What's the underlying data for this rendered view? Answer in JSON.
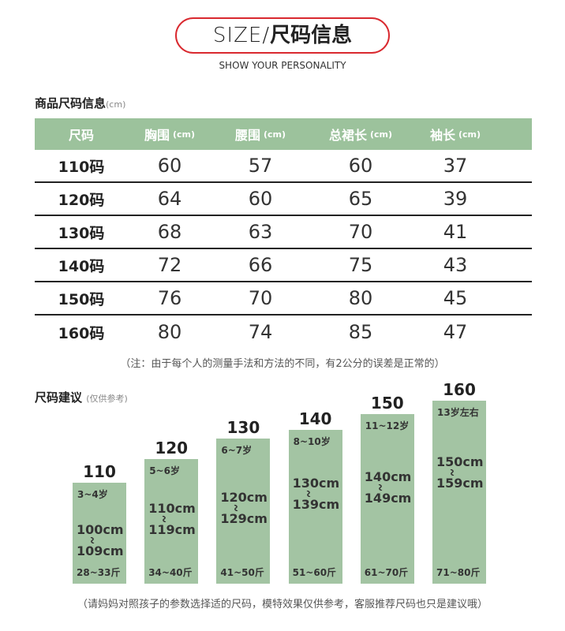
{
  "header": {
    "title_en": "SIZE/",
    "title_cn": "尺码信息",
    "subtitle": "SHOW YOUR PERSONALITY"
  },
  "table": {
    "title": "商品尺码信息",
    "unit": "(cm)",
    "columns": [
      {
        "label": "尺码"
      },
      {
        "label": "胸围",
        "unit": "(cm)"
      },
      {
        "label": "腰围",
        "unit": "(cm)"
      },
      {
        "label": "总裙长",
        "unit": "(cm)"
      },
      {
        "label": "袖长",
        "unit": "(cm)"
      }
    ],
    "rows": [
      [
        "110码",
        60,
        57,
        60,
        37
      ],
      [
        "120码",
        64,
        60,
        65,
        39
      ],
      [
        "130码",
        68,
        63,
        70,
        41
      ],
      [
        "140码",
        72,
        66,
        75,
        43
      ],
      [
        "150码",
        76,
        70,
        80,
        45
      ],
      [
        "160码",
        80,
        74,
        85,
        47
      ]
    ],
    "note": "（注：由于每个人的测量手法和方法的不同，有2公分的误差是正常的）"
  },
  "recommend": {
    "title": "尺码建议",
    "subtitle": "(仅供参考)",
    "items": [
      {
        "size": "110",
        "age": "3~4岁",
        "height_from": "100cm",
        "height_to": "109cm",
        "weight": "28~33斤"
      },
      {
        "size": "120",
        "age": "5~6岁",
        "height_from": "110cm",
        "height_to": "119cm",
        "weight": "34~40斤"
      },
      {
        "size": "130",
        "age": "6~7岁",
        "height_from": "120cm",
        "height_to": "129cm",
        "weight": "41~50斤"
      },
      {
        "size": "140",
        "age": "8~10岁",
        "height_from": "130cm",
        "height_to": "139cm",
        "weight": "51~60斤"
      },
      {
        "size": "150",
        "age": "11~12岁",
        "height_from": "140cm",
        "height_to": "149cm",
        "weight": "61~70斤"
      },
      {
        "size": "160",
        "age": "13岁左右",
        "height_from": "150cm",
        "height_to": "159cm",
        "weight": "71~80斤"
      }
    ],
    "footer": "（请妈妈对照孩子的参数选择适的尺码，模特效果仅供参考，客服推荐尺码也只是建议哦）"
  }
}
